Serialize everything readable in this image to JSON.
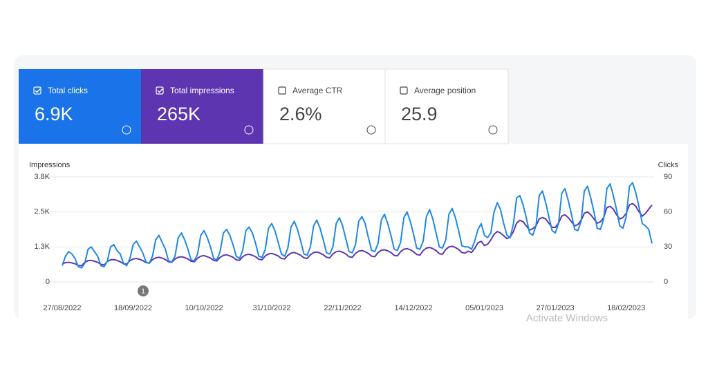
{
  "cards": [
    {
      "label": "Total clicks",
      "value": "6.9K",
      "checked": true,
      "color": "#1a73e8"
    },
    {
      "label": "Total impressions",
      "value": "265K",
      "checked": true,
      "color": "#5e35b1"
    },
    {
      "label": "Average CTR",
      "value": "2.6%",
      "checked": false,
      "color": "#ffffff"
    },
    {
      "label": "Average position",
      "value": "25.9",
      "checked": false,
      "color": "#ffffff"
    }
  ],
  "watermark": "Activate Windows",
  "chart_data": {
    "type": "line",
    "y_label": "Impressions",
    "y2_label": "Clicks",
    "annotation": "1",
    "categories": [
      "27/08/2022",
      null,
      null,
      null,
      null,
      null,
      null,
      null,
      null,
      null,
      null,
      null,
      null,
      null,
      null,
      null,
      null,
      null,
      null,
      null,
      null,
      null,
      "18/09/2022",
      null,
      null,
      null,
      null,
      null,
      null,
      null,
      null,
      null,
      null,
      null,
      null,
      null,
      null,
      null,
      null,
      null,
      null,
      null,
      null,
      null,
      "10/10/2022",
      null,
      null,
      null,
      null,
      null,
      null,
      null,
      null,
      null,
      null,
      null,
      null,
      null,
      null,
      null,
      null,
      null,
      null,
      null,
      null,
      "31/10/2022",
      null,
      null,
      null,
      null,
      null,
      null,
      null,
      null,
      null,
      null,
      null,
      null,
      null,
      null,
      null,
      null,
      null,
      null,
      null,
      null,
      null,
      "22/11/2022",
      null,
      null,
      null,
      null,
      null,
      null,
      null,
      null,
      null,
      null,
      null,
      null,
      null,
      null,
      null,
      null,
      null,
      null,
      null,
      null,
      null,
      "14/12/2022",
      null,
      null,
      null,
      null,
      null,
      null,
      null,
      null,
      null,
      null,
      null,
      null,
      null,
      null,
      null,
      null,
      null,
      null,
      null,
      null,
      null,
      "05/01/2023",
      null,
      null,
      null,
      null,
      null,
      null,
      null,
      null,
      null,
      null,
      null,
      null,
      null,
      null,
      null,
      null,
      null,
      null,
      null,
      null,
      null,
      "27/01/2023",
      null,
      null,
      null,
      null,
      null,
      null,
      null,
      null,
      null,
      null,
      null,
      null,
      null,
      null,
      null,
      null,
      null,
      null,
      null,
      null,
      null,
      "18/02/2023",
      null,
      null,
      null,
      null,
      null,
      null,
      null,
      null
    ],
    "series": [
      {
        "color": "#5e35b1",
        "axis": "y",
        "values": [
          640,
          690,
          700,
          680,
          650,
          590,
          580,
          700,
          760,
          770,
          740,
          700,
          630,
          610,
          730,
          790,
          800,
          770,
          720,
          650,
          640,
          760,
          820,
          840,
          810,
          760,
          690,
          670,
          800,
          860,
          880,
          850,
          800,
          720,
          700,
          820,
          880,
          900,
          870,
          820,
          740,
          720,
          850,
          920,
          940,
          900,
          850,
          770,
          750,
          880,
          950,
          970,
          930,
          880,
          790,
          770,
          900,
          970,
          990,
          950,
          900,
          810,
          790,
          930,
          1000,
          1020,
          980,
          930,
          840,
          820,
          950,
          1030,
          1050,
          1010,
          950,
          860,
          840,
          970,
          1050,
          1070,
          1030,
          970,
          880,
          860,
          1000,
          1080,
          1100,
          1060,
          1000,
          900,
          880,
          1020,
          1100,
          1120,
          1080,
          1020,
          920,
          900,
          1050,
          1130,
          1150,
          1110,
          1050,
          950,
          930,
          1080,
          1170,
          1190,
          1150,
          1080,
          980,
          960,
          1120,
          1210,
          1230,
          1190,
          1120,
          1010,
          990,
          1160,
          1250,
          1270,
          1230,
          1160,
          1050,
          1030,
          1100,
          1050,
          1200,
          1400,
          1450,
          1300,
          1350,
          1500,
          1700,
          1800,
          1750,
          1650,
          1550,
          1600,
          1800,
          2100,
          2200,
          2150,
          2000,
          1850,
          1900,
          2000,
          2250,
          2300,
          2250,
          2100,
          1950,
          1950,
          2100,
          2350,
          2400,
          2300,
          2150,
          2000,
          2050,
          2200,
          2450,
          2500,
          2400,
          2250,
          2100,
          2150,
          2300,
          2650,
          2700,
          2600,
          2400,
          2250,
          2300,
          2450,
          2750,
          2800,
          2700,
          2500,
          2350,
          2450,
          2600,
          2750
        ]
      },
      {
        "color": "#1e88e5",
        "axis": "y2",
        "values": [
          14,
          22,
          26,
          24,
          20,
          13,
          12,
          16,
          28,
          30,
          26,
          22,
          14,
          13,
          18,
          30,
          32,
          27,
          24,
          16,
          14,
          20,
          32,
          35,
          30,
          25,
          17,
          16,
          22,
          36,
          40,
          34,
          28,
          18,
          17,
          22,
          38,
          42,
          36,
          28,
          19,
          18,
          24,
          40,
          44,
          38,
          30,
          20,
          19,
          26,
          42,
          45,
          40,
          32,
          22,
          20,
          27,
          44,
          47,
          42,
          33,
          22,
          21,
          28,
          46,
          50,
          44,
          34,
          24,
          22,
          29,
          47,
          52,
          45,
          35,
          24,
          23,
          30,
          48,
          53,
          46,
          36,
          25,
          24,
          30,
          50,
          55,
          48,
          37,
          26,
          25,
          32,
          52,
          56,
          50,
          38,
          27,
          26,
          33,
          53,
          58,
          50,
          40,
          28,
          27,
          34,
          55,
          60,
          52,
          41,
          29,
          28,
          35,
          56,
          62,
          54,
          42,
          30,
          29,
          36,
          58,
          63,
          55,
          44,
          31,
          30,
          30,
          28,
          35,
          45,
          50,
          40,
          38,
          42,
          60,
          68,
          62,
          50,
          40,
          38,
          50,
          72,
          74,
          66,
          55,
          42,
          40,
          48,
          74,
          78,
          68,
          56,
          44,
          42,
          50,
          76,
          80,
          70,
          58,
          45,
          44,
          52,
          78,
          82,
          72,
          60,
          46,
          45,
          54,
          80,
          84,
          74,
          62,
          48,
          46,
          56,
          82,
          85,
          76,
          64,
          50,
          48,
          45,
          33
        ]
      }
    ],
    "ylim": [
      0,
      3750
    ],
    "yticks": [
      0,
      {
        "value": 1250,
        "label": "1.3K"
      },
      {
        "value": 2500,
        "label": "2.5K"
      },
      {
        "value": 3750,
        "label": "3.8K"
      }
    ],
    "y2lim": [
      0,
      90
    ],
    "y2ticks": [
      0,
      30,
      60,
      90
    ],
    "grid": true
  }
}
